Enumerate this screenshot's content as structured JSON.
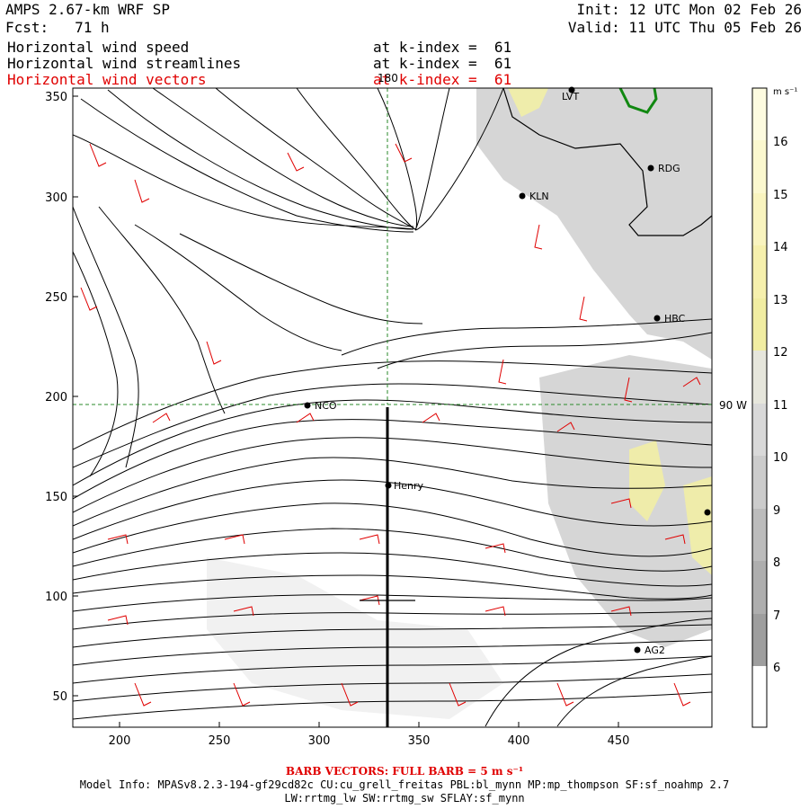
{
  "header": {
    "model": "AMPS 2.67-km WRF SP",
    "forecast": "Fcst:   71 h",
    "init": "Init: 12 UTC Mon 02 Feb 26",
    "valid": "Valid: 11 UTC Thu 05 Feb 26",
    "fields": [
      {
        "label": "Horizontal wind speed",
        "level": "at k-index =  61",
        "color": "#000000"
      },
      {
        "label": "Horizontal wind streamlines",
        "level": "at k-index =  61",
        "color": "#000000"
      },
      {
        "label": "Horizontal wind vectors",
        "level": "at k-index =  61",
        "color": "#e00000"
      }
    ]
  },
  "map": {
    "x_ticks": [
      "200",
      "250",
      "300",
      "350",
      "400",
      "450"
    ],
    "y_ticks": [
      "350",
      "300",
      "250",
      "200",
      "150",
      "100",
      "50"
    ],
    "grid_x_label": "180",
    "grid_y_label": "90 W",
    "stations": [
      {
        "id": "LVT",
        "label": "LVT"
      },
      {
        "id": "RDG",
        "label": "RDG"
      },
      {
        "id": "KLN",
        "label": "KLN"
      },
      {
        "id": "HBC",
        "label": "HBC"
      },
      {
        "id": "NCO",
        "label": "NCO"
      },
      {
        "id": "Henry",
        "label": "Henry"
      },
      {
        "id": "AG2",
        "label": "AG2"
      },
      {
        "id": "edge",
        "label": ""
      }
    ],
    "colors": {
      "vectors": "#e00000",
      "grid": "#2a8a2a",
      "terrain": "#cfcfcf",
      "snow": "#f2efa6"
    }
  },
  "colorbar": {
    "units": "m s⁻¹",
    "labels": [
      "16",
      "15",
      "14",
      "13",
      "12",
      "11",
      "10",
      "9",
      "8",
      "7",
      "6"
    ],
    "colors": [
      "#fdfbe0",
      "#fbf8cf",
      "#f9f4bf",
      "#f6f0ad",
      "#f1eda2",
      "#e6e6dc",
      "#d9d9d9",
      "#cccccc",
      "#bcbcbc",
      "#aeaeae",
      "#9e9e9e",
      "#ffffff"
    ]
  },
  "footer": {
    "barb": "BARB VECTORS: FULL BARB = 5 m s⁻¹",
    "model_info": "Model Info: MPASv8.2.3-194-gf29cd82c CU:cu_grell_freitas PBL:bl_mynn MP:mp_thompson SF:sf_noahmp 2.7",
    "model_info2": "LW:rrtmg_lw SW:rrtmg_sw SFLAY:sf_mynn"
  }
}
